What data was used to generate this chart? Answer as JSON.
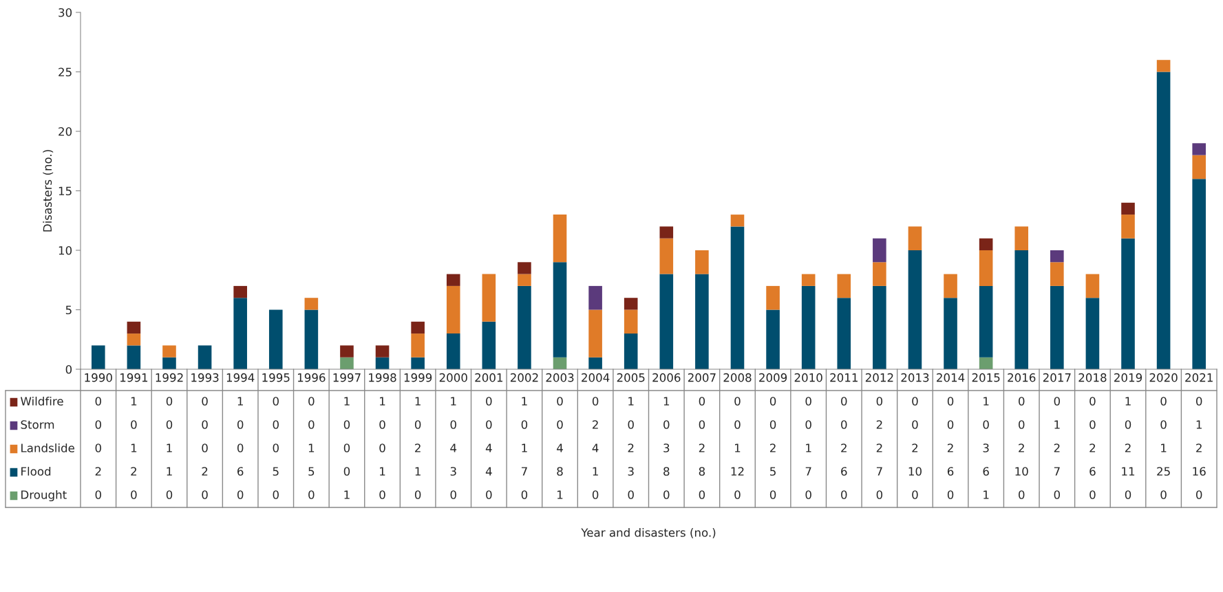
{
  "chart_data": {
    "type": "bar",
    "stacked": true,
    "annotations": [
      "Year and disasters (no.)"
    ],
    "ylabel": "Disasters (no.)",
    "categories": [
      "1990",
      "1991",
      "1992",
      "1993",
      "1994",
      "1995",
      "1996",
      "1997",
      "1998",
      "1999",
      "2000",
      "2001",
      "2002",
      "2003",
      "2004",
      "2005",
      "2006",
      "2007",
      "2008",
      "2009",
      "2010",
      "2011",
      "2012",
      "2013",
      "2014",
      "2015",
      "2016",
      "2017",
      "2018",
      "2019",
      "2020",
      "2021"
    ],
    "series": [
      {
        "name": "Drought",
        "color": "#6b9e6e",
        "values": [
          0,
          0,
          0,
          0,
          0,
          0,
          0,
          1,
          0,
          0,
          0,
          0,
          0,
          1,
          0,
          0,
          0,
          0,
          0,
          0,
          0,
          0,
          0,
          0,
          0,
          1,
          0,
          0,
          0,
          0,
          0,
          0
        ]
      },
      {
        "name": "Flood",
        "color": "#004e6e",
        "values": [
          2,
          2,
          1,
          2,
          6,
          5,
          5,
          0,
          1,
          1,
          3,
          4,
          7,
          8,
          1,
          3,
          8,
          8,
          12,
          5,
          7,
          6,
          7,
          10,
          6,
          6,
          10,
          7,
          6,
          11,
          25,
          16
        ]
      },
      {
        "name": "Landslide",
        "color": "#e07b28",
        "values": [
          0,
          1,
          1,
          0,
          0,
          0,
          1,
          0,
          0,
          2,
          4,
          4,
          1,
          4,
          4,
          2,
          3,
          2,
          1,
          2,
          1,
          2,
          2,
          2,
          2,
          3,
          2,
          2,
          2,
          2,
          1,
          2
        ]
      },
      {
        "name": "Storm",
        "color": "#5b3a7c",
        "values": [
          0,
          0,
          0,
          0,
          0,
          0,
          0,
          0,
          0,
          0,
          0,
          0,
          0,
          0,
          2,
          0,
          0,
          0,
          0,
          0,
          0,
          0,
          2,
          0,
          0,
          0,
          0,
          1,
          0,
          0,
          0,
          1
        ]
      },
      {
        "name": "Wildfire",
        "color": "#7a2418",
        "values": [
          0,
          1,
          0,
          0,
          1,
          0,
          0,
          1,
          1,
          1,
          1,
          0,
          1,
          0,
          0,
          1,
          1,
          0,
          0,
          0,
          0,
          0,
          0,
          0,
          0,
          1,
          0,
          0,
          0,
          1,
          0,
          0
        ]
      }
    ],
    "ylim": [
      0,
      30
    ],
    "yticks": [
      0,
      5,
      10,
      15,
      20,
      25,
      30
    ],
    "grid": false,
    "legend": "bottom",
    "data_labels": true
  }
}
